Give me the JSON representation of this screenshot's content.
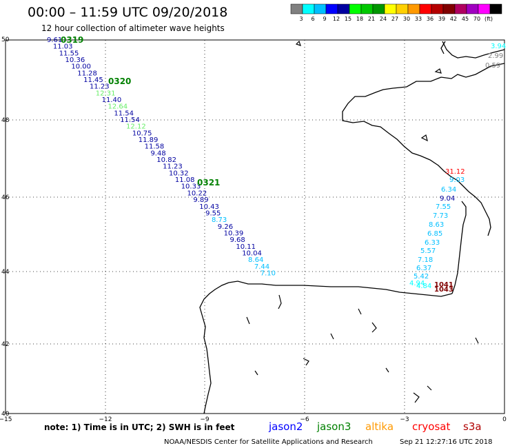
{
  "header": {
    "title": "00:00 – 11:59 UTC 09/20/2018",
    "subtitle": "12 hour collection of altimeter wave heights"
  },
  "legend": {
    "colors": [
      "#808080",
      "#00ffff",
      "#00bfff",
      "#0000ff",
      "#0000a0",
      "#00ff00",
      "#00c800",
      "#009600",
      "#ffff00",
      "#ffd000",
      "#ff9900",
      "#ff0000",
      "#b40000",
      "#800000",
      "#b00060",
      "#a000c0",
      "#ff00ff",
      "#000000"
    ],
    "labels": [
      "3",
      "6",
      "9",
      "12",
      "15",
      "18",
      "21",
      "24",
      "27",
      "30",
      "33",
      "36",
      "39",
      "42",
      "45",
      "70",
      "(ft)"
    ]
  },
  "axes": {
    "lat_labels": [
      "50",
      "48",
      "46",
      "44",
      "42",
      "40"
    ],
    "lon_labels": [
      "−15",
      "−12",
      "−9",
      "−6",
      "−3",
      "0"
    ]
  },
  "passes": [
    {
      "label": "0319",
      "color": "#008000"
    },
    {
      "label": "0320",
      "color": "#008000"
    },
    {
      "label": "0321",
      "color": "#008000"
    }
  ],
  "track_west": [
    {
      "v": "9.61",
      "c": "#0000a0"
    },
    {
      "v": "11.03",
      "c": "#0000a0"
    },
    {
      "v": "11.55",
      "c": "#0000a0"
    },
    {
      "v": "10.36",
      "c": "#0000a0"
    },
    {
      "v": "10.00",
      "c": "#0000a0"
    },
    {
      "v": "11.28",
      "c": "#0000a0"
    },
    {
      "v": "11.45",
      "c": "#0000a0"
    },
    {
      "v": "11.23",
      "c": "#0000a0"
    },
    {
      "v": "12.31",
      "c": "#66ee66"
    },
    {
      "v": "11.40",
      "c": "#0000a0"
    },
    {
      "v": "12.64",
      "c": "#66ee66"
    },
    {
      "v": "11.54",
      "c": "#0000a0"
    },
    {
      "v": "11.54",
      "c": "#0000a0"
    },
    {
      "v": "12.12",
      "c": "#66ee66"
    },
    {
      "v": "10.75",
      "c": "#0000a0"
    },
    {
      "v": "11.89",
      "c": "#0000a0"
    },
    {
      "v": "11.58",
      "c": "#0000a0"
    },
    {
      "v": "9.48",
      "c": "#0000a0"
    },
    {
      "v": "10.82",
      "c": "#0000a0"
    },
    {
      "v": "11.23",
      "c": "#0000a0"
    },
    {
      "v": "10.32",
      "c": "#0000a0"
    },
    {
      "v": "11.08",
      "c": "#0000a0"
    },
    {
      "v": "10.33",
      "c": "#0000a0"
    },
    {
      "v": "10.22",
      "c": "#0000a0"
    },
    {
      "v": "9.89",
      "c": "#0000a0"
    },
    {
      "v": "10.43",
      "c": "#0000a0"
    },
    {
      "v": "9.55",
      "c": "#0000a0"
    },
    {
      "v": "8.73",
      "c": "#00bfff"
    },
    {
      "v": "9.26",
      "c": "#0000a0"
    },
    {
      "v": "10.39",
      "c": "#0000a0"
    },
    {
      "v": "9.68",
      "c": "#0000a0"
    },
    {
      "v": "10.11",
      "c": "#0000a0"
    },
    {
      "v": "10.04",
      "c": "#0000a0"
    },
    {
      "v": "8.64",
      "c": "#00bfff"
    },
    {
      "v": "7.44",
      "c": "#00bfff"
    },
    {
      "v": "7.10",
      "c": "#00bfff"
    }
  ],
  "track_east": [
    {
      "v": "31.12",
      "c": "#ff0000"
    },
    {
      "v": "9.03",
      "c": "#00bfff"
    },
    {
      "v": "6.34",
      "c": "#00bfff"
    },
    {
      "v": "9.04",
      "c": "#0000a0"
    },
    {
      "v": "7.55",
      "c": "#00bfff"
    },
    {
      "v": "7.73",
      "c": "#00bfff"
    },
    {
      "v": "8.63",
      "c": "#00bfff"
    },
    {
      "v": "6.85",
      "c": "#00bfff"
    },
    {
      "v": "6.33",
      "c": "#00bfff"
    },
    {
      "v": "5.57",
      "c": "#00bfff"
    },
    {
      "v": "7.18",
      "c": "#00bfff"
    },
    {
      "v": "6.37",
      "c": "#00bfff"
    },
    {
      "v": "5.42",
      "c": "#00bfff"
    },
    {
      "v": "4.94",
      "c": "#00ffff"
    },
    {
      "v": "4.84",
      "c": "#00ffff"
    },
    {
      "v": "1041",
      "c": "#800000"
    },
    {
      "v": "1043",
      "c": "#800000"
    }
  ],
  "uk_values": [
    {
      "v": "3.94",
      "c": "#00ffff"
    },
    {
      "v": "2.99",
      "c": "#808080"
    },
    {
      "v": "0.59",
      "c": "#808080"
    }
  ],
  "footer": {
    "note": "note:  1) Time is in UTC;  2) SWH is in feet",
    "satellites": [
      {
        "name": "jason2",
        "color": "#0000ff"
      },
      {
        "name": "jason3",
        "color": "#008000"
      },
      {
        "name": "altika",
        "color": "#ff9900"
      },
      {
        "name": "cryosat",
        "color": "#ff0000"
      },
      {
        "name": "s3a",
        "color": "#b00000"
      }
    ],
    "credit": "NOAA/NESDIS Center for Satellite Applications and Research",
    "timestamp": "Sep 21 12:27:16 UTC 2018"
  }
}
